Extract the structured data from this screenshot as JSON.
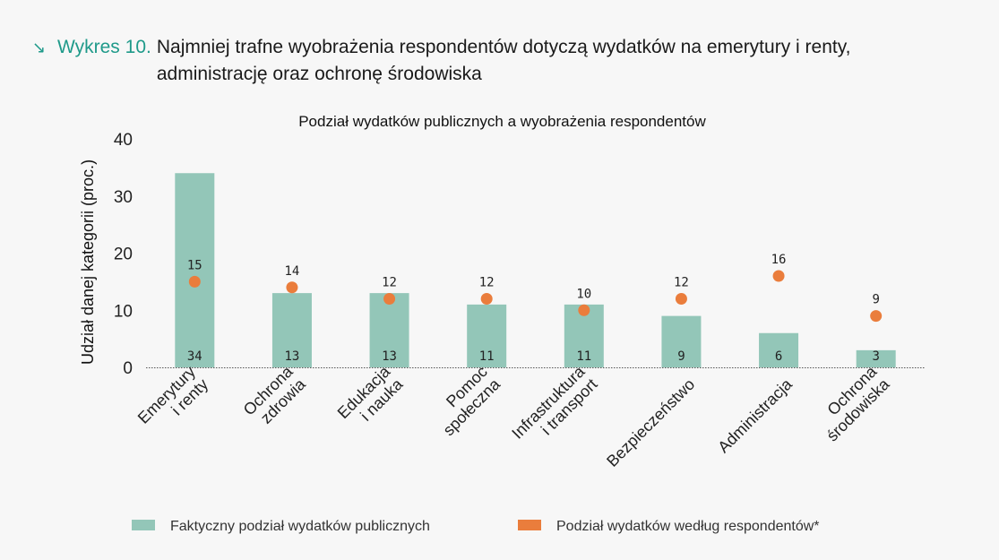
{
  "header": {
    "arrow_icon": "↘",
    "label": "Wykres 10.",
    "title": "Najmniej trafne wyobrażenia respondentów dotyczą wydatków na emerytury i renty, administrację oraz ochronę środowiska"
  },
  "chart_data": {
    "type": "bar",
    "title": "Podział wydatków publicznych a wyobrażenia respondentów",
    "ylabel": "Udział danej kategorii (proc.)",
    "xlabel": "",
    "ylim": [
      0,
      40
    ],
    "yticks": [
      "0",
      "10",
      "20",
      "30",
      "40"
    ],
    "categories": [
      [
        "Emerytury",
        "i renty"
      ],
      [
        "Ochrona",
        "zdrowia"
      ],
      [
        "Edukacja",
        "i nauka"
      ],
      [
        "Pomoc",
        "społeczna"
      ],
      [
        "Infrastruktura",
        "i transport"
      ],
      [
        "Bezpieczeństwo"
      ],
      [
        "Administracja"
      ],
      [
        "Ochrona",
        "środowiska"
      ]
    ],
    "series": [
      {
        "name": "Faktyczny podział wydatków publicznych",
        "kind": "bar",
        "color": "#93c6b8",
        "values": [
          34,
          13,
          13,
          11,
          11,
          9,
          6,
          3
        ],
        "labels": [
          "34",
          "13",
          "13",
          "11",
          "11",
          "9",
          "6",
          "3"
        ]
      },
      {
        "name": "Podział wydatków według respondentów*",
        "kind": "dot",
        "color": "#ea7d3c",
        "values": [
          15,
          14,
          12,
          12,
          10,
          12,
          16,
          9
        ],
        "labels": [
          "15",
          "14",
          "12",
          "12",
          "10",
          "12",
          "16",
          "9"
        ]
      }
    ],
    "legend_position": "bottom"
  }
}
